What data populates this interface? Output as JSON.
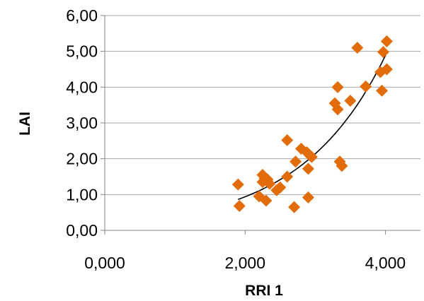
{
  "chart_data": {
    "type": "scatter",
    "title": "",
    "xlabel": "RRI 1",
    "ylabel": "LAI",
    "xlim": [
      0,
      4.5
    ],
    "ylim": [
      0,
      6
    ],
    "x_ticks": [
      0,
      2,
      4
    ],
    "x_tick_labels": [
      "0,000",
      "2,000",
      "4,000"
    ],
    "y_ticks": [
      0,
      1,
      2,
      3,
      4,
      5,
      6
    ],
    "y_tick_labels": [
      "0,00",
      "1,00",
      "2,00",
      "3,00",
      "4,00",
      "5,00",
      "6,00"
    ],
    "grid": "horizontal",
    "legend": "none",
    "marker": "diamond",
    "marker_color": "#e36c0a",
    "trendline": {
      "type": "exponential",
      "a": 0.18,
      "b": 0.825,
      "x_range": [
        1.9,
        4.02
      ],
      "color": "#000000"
    },
    "series": [
      {
        "x": [
          1.9,
          1.92,
          2.2,
          2.25,
          2.25,
          2.28,
          2.3,
          2.32,
          2.35,
          2.45,
          2.5,
          2.6,
          2.6,
          2.7,
          2.72,
          2.8,
          2.88,
          2.9,
          2.9,
          2.92,
          2.95,
          3.28,
          3.32,
          3.32,
          3.35,
          3.38,
          3.5,
          3.6,
          3.72,
          3.93,
          3.95,
          3.97,
          4.02,
          4.02
        ],
        "y": [
          1.28,
          0.68,
          0.95,
          1.55,
          1.35,
          1.45,
          0.83,
          1.42,
          1.3,
          1.12,
          1.2,
          2.52,
          1.5,
          0.65,
          1.92,
          2.28,
          2.18,
          0.92,
          1.72,
          2.1,
          2.05,
          3.55,
          4.0,
          3.38,
          1.92,
          1.8,
          3.62,
          5.1,
          4.02,
          4.42,
          3.9,
          4.98,
          5.28,
          4.5
        ]
      }
    ]
  }
}
